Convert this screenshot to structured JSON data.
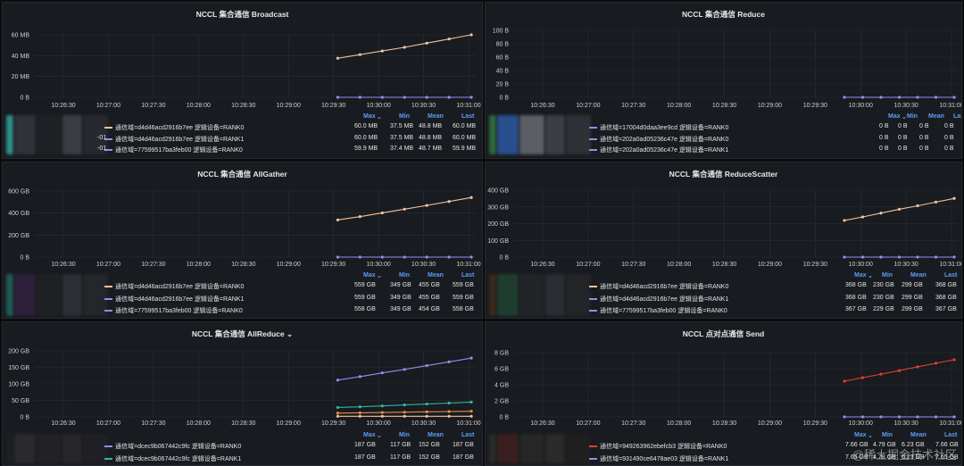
{
  "time_ticks": [
    "10:26:30",
    "10:27:00",
    "10:27:30",
    "10:28:00",
    "10:28:30",
    "10:29:00",
    "10:29:30",
    "10:30:00",
    "10:30:30",
    "10:31:00"
  ],
  "legend_columns": [
    "Max",
    "Min",
    "Mean",
    "Last"
  ],
  "legend_sort_mark": "⌄",
  "colors": {
    "line_primary": "#f2c2a0",
    "line_secondary": "#8f8ff2",
    "line_send": "#e0402a",
    "line_teal": "#37b2a5",
    "line_orange": "#f08a3c",
    "legend_header": "#5e9cf5",
    "panel_bg": "#181b1f",
    "grid": "#2b2f35"
  },
  "panels": [
    {
      "title": "NCCL 集合通信 Broadcast",
      "y_ticks": [
        "60 MB",
        "40 MB",
        "20 MB",
        "0 B"
      ],
      "chart_data": {
        "type": "line",
        "ylim": [
          0,
          62914560
        ],
        "x": [
          "10:29:30",
          "10:29:45",
          "10:30:00",
          "10:30:15",
          "10:30:30",
          "10:30:45",
          "10:31:00"
        ],
        "series": [
          {
            "values": [
              37.5,
              41,
              44.5,
              48,
              52,
              56,
              60
            ],
            "unit": "MB"
          },
          {
            "values": [
              0,
              0,
              0,
              0,
              0,
              0,
              0
            ],
            "unit": "MB"
          }
        ]
      },
      "legend": [
        {
          "prefix": "",
          "label": "通信域=d4d46acd2916b7ee 逻辑设备=RANK0",
          "max": "60.0 MB",
          "min": "37.5 MB",
          "mean": "48.8 MB",
          "last": "60.0 MB"
        },
        {
          "prefix": "-01",
          "label": "通信域=d4d46acd2916b7ee 逻辑设备=RANK1",
          "max": "60.0 MB",
          "min": "37.5 MB",
          "mean": "48.8 MB",
          "last": "60.0 MB"
        },
        {
          "prefix": "-01",
          "label": "通信域=77599517ba3feb00 逻辑设备=RANK0",
          "max": "59.9 MB",
          "min": "37.4 MB",
          "mean": "48.7 MB",
          "last": "59.9 MB"
        }
      ]
    },
    {
      "title": "NCCL 集合通信 Reduce",
      "y_ticks": [
        "100 B",
        "80 B",
        "60 B",
        "40 B",
        "20 B",
        "0 B"
      ],
      "chart_data": {
        "type": "line",
        "ylim": [
          0,
          100
        ],
        "x": [
          "10:29:30",
          "10:29:45",
          "10:30:00",
          "10:30:15",
          "10:30:30",
          "10:30:45",
          "10:31:00"
        ],
        "series": [
          {
            "values": [
              0,
              0,
              0,
              0,
              0,
              0,
              0
            ],
            "unit": "B"
          }
        ]
      },
      "legend": [
        {
          "prefix": "",
          "label": "通信域=17004d0daa3ee9cd 逻辑设备=RANK0",
          "max": "0 B",
          "min": "0 B",
          "mean": "0 B",
          "last": "0 B"
        },
        {
          "prefix": "",
          "label": "通信域=202a0ad05236c47e 逻辑设备=RANK0",
          "max": "0 B",
          "min": "0 B",
          "mean": "0 B",
          "last": "0 B"
        },
        {
          "prefix": "",
          "label": "通信域=202a0ad05236c47e 逻辑设备=RANK1",
          "max": "0 B",
          "min": "0 B",
          "mean": "0 B",
          "last": "0 B"
        }
      ]
    },
    {
      "title": "NCCL 集合通信 AllGather",
      "y_ticks": [
        "600 GB",
        "400 GB",
        "200 GB",
        "0 B"
      ],
      "chart_data": {
        "type": "line",
        "ylim": [
          0,
          620
        ],
        "x": [
          "10:29:30",
          "10:29:45",
          "10:30:00",
          "10:30:15",
          "10:30:30",
          "10:30:45",
          "10:31:00"
        ],
        "series": [
          {
            "values": [
              349,
              380,
              415,
              450,
              485,
              522,
              559
            ],
            "unit": "GB"
          },
          {
            "values": [
              0,
              0,
              0,
              0,
              0,
              0,
              0
            ],
            "unit": "GB"
          }
        ]
      },
      "legend": [
        {
          "prefix": "",
          "label": "通信域=d4d46acd2916b7ee 逻辑设备=RANK0",
          "max": "559 GB",
          "min": "349 GB",
          "mean": "455 GB",
          "last": "559 GB"
        },
        {
          "prefix": "",
          "label": "通信域=d4d46acd2916b7ee 逻辑设备=RANK1",
          "max": "559 GB",
          "min": "349 GB",
          "mean": "455 GB",
          "last": "559 GB"
        },
        {
          "prefix": "",
          "label": "通信域=77599517ba3feb00 逻辑设备=RANK0",
          "max": "558 GB",
          "min": "349 GB",
          "mean": "454 GB",
          "last": "558 GB"
        }
      ]
    },
    {
      "title": "NCCL 集合通信 ReduceScatter",
      "y_ticks": [
        "400 GB",
        "300 GB",
        "200 GB",
        "100 GB",
        "0 B"
      ],
      "chart_data": {
        "type": "line",
        "ylim": [
          0,
          420
        ],
        "x": [
          "10:29:30",
          "10:29:45",
          "10:30:00",
          "10:30:15",
          "10:30:30",
          "10:30:45",
          "10:31:00"
        ],
        "series": [
          {
            "values": [
              230,
              252,
              276,
              300,
              322,
              345,
              368
            ],
            "unit": "GB"
          },
          {
            "values": [
              0,
              0,
              0,
              0,
              0,
              0,
              0
            ],
            "unit": "GB"
          }
        ]
      },
      "legend": [
        {
          "prefix": "",
          "label": "通信域=d4d46acd2916b7ee 逻辑设备=RANK0",
          "max": "368 GB",
          "min": "230 GB",
          "mean": "299 GB",
          "last": "368 GB"
        },
        {
          "prefix": "",
          "label": "通信域=d4d46acd2916b7ee 逻辑设备=RANK1",
          "max": "368 GB",
          "min": "230 GB",
          "mean": "299 GB",
          "last": "368 GB"
        },
        {
          "prefix": "",
          "label": "通信域=77599517ba3feb00 逻辑设备=RANK0",
          "max": "367 GB",
          "min": "229 GB",
          "mean": "299 GB",
          "last": "367 GB"
        }
      ]
    },
    {
      "title": "NCCL 集合通信 AllReduce ⌄",
      "y_ticks": [
        "200 GB",
        "150 GB",
        "100 GB",
        "50 GB",
        "0 B"
      ],
      "chart_data": {
        "type": "line",
        "ylim": [
          0,
          210
        ],
        "x": [
          "10:29:30",
          "10:29:45",
          "10:30:00",
          "10:30:15",
          "10:30:30",
          "10:30:45",
          "10:31:00"
        ],
        "series": [
          {
            "values": [
              117,
              128,
              140,
              151,
              163,
              175,
              187
            ],
            "unit": "GB"
          },
          {
            "values": [
              30,
              32,
              35,
              38,
              41,
              44,
              47
            ],
            "unit": "GB"
          },
          {
            "values": [
              12,
              13,
              14,
              15,
              16,
              17,
              18
            ],
            "unit": "GB"
          },
          {
            "values": [
              2,
              2,
              2,
              2,
              2,
              2,
              2
            ],
            "unit": "GB"
          }
        ]
      },
      "legend": [
        {
          "prefix": "",
          "label": "通信域=dcec9b067442c9fc 逻辑设备=RANK0",
          "max": "187 GB",
          "min": "117 GB",
          "mean": "152 GB",
          "last": "187 GB"
        },
        {
          "prefix": "",
          "label": "通信域=dcec9b067442c9fc 逻辑设备=RANK1",
          "max": "187 GB",
          "min": "117 GB",
          "mean": "152 GB",
          "last": "187 GB"
        }
      ]
    },
    {
      "title": "NCCL 点对点通信 Send",
      "y_ticks": [
        "8 GB",
        "6 GB",
        "4 GB",
        "2 GB",
        "0 B"
      ],
      "chart_data": {
        "type": "line",
        "ylim": [
          0,
          8.6
        ],
        "x": [
          "10:29:30",
          "10:29:45",
          "10:30:00",
          "10:30:15",
          "10:30:30",
          "10:30:45",
          "10:31:00"
        ],
        "series": [
          {
            "values": [
              4.78,
              5.25,
              5.72,
              6.2,
              6.7,
              7.18,
              7.65
            ],
            "unit": "GB"
          },
          {
            "values": [
              0,
              0,
              0,
              0,
              0,
              0,
              0
            ],
            "unit": "GB"
          }
        ]
      },
      "legend": [
        {
          "prefix": "",
          "label": "通信域=949263962ebefcb3 逻辑设备=RANK0",
          "max": "7.66 GB",
          "min": "4.79 GB",
          "mean": "6.23 GB",
          "last": "7.66 GB"
        },
        {
          "prefix": "",
          "label": "通信域=931490ce6478ae03 逻辑设备=RANK1",
          "max": "7.65 GB",
          "min": "4.78 GB",
          "mean": "6.23 GB",
          "last": "7.65 GB"
        }
      ]
    }
  ],
  "watermark": "@稀土掘金技术社区"
}
